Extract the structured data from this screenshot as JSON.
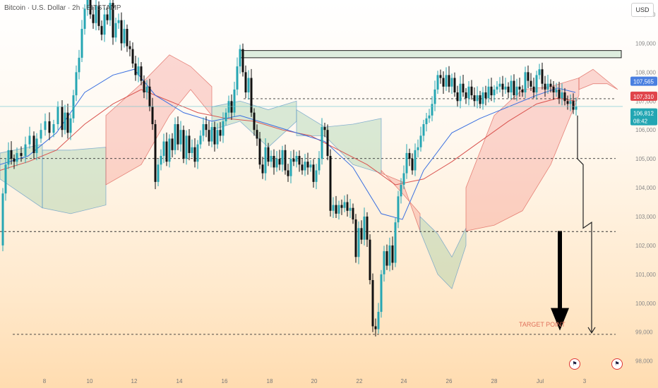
{
  "header": {
    "title": "Bitcoin · U.S. Dollar · 2h · BITSTAMP",
    "currency_button": "USD"
  },
  "annotations": {
    "target_label": "TARGET POINT"
  },
  "price_tags": [
    {
      "label": "107,565",
      "color": "#4a7fe0"
    },
    {
      "label": "107,310",
      "color": "#e0454b"
    },
    {
      "label": "106,812",
      "sublabel": "08:42",
      "color": "#22a6b3"
    }
  ],
  "event_icons": [
    "us-flag-icon",
    "us-flag-icon"
  ],
  "chart_data": {
    "type": "candlestick",
    "symbol": "BTCUSD",
    "interval": "2h",
    "exchange": "BITSTAMP",
    "y_ticks": [
      98000,
      99000,
      100000,
      101000,
      102000,
      103000,
      104000,
      105000,
      106000,
      107000,
      108000,
      109000,
      110000
    ],
    "y_tick_labels": [
      "98,000",
      "99,000",
      "100,000",
      "101,000",
      "102,000",
      "103,000",
      "104,000",
      "105,000",
      "106,000",
      "107,000",
      "108,000",
      "109,000",
      "110,000"
    ],
    "ylim": [
      97600,
      110500
    ],
    "x_tick_labels": [
      "8",
      "10",
      "12",
      "14",
      "16",
      "18",
      "20",
      "22",
      "24",
      "26",
      "28",
      "Jul",
      "3"
    ],
    "grid": false,
    "price_path": [
      [
        0,
        102000
      ],
      [
        4,
        103800
      ],
      [
        8,
        104800
      ],
      [
        12,
        105300
      ],
      [
        16,
        105000
      ],
      [
        20,
        104900
      ],
      [
        24,
        105200
      ],
      [
        30,
        105100
      ],
      [
        36,
        105500
      ],
      [
        42,
        105800
      ],
      [
        48,
        105200
      ],
      [
        52,
        105700
      ],
      [
        58,
        106000
      ],
      [
        64,
        106300
      ],
      [
        70,
        105900
      ],
      [
        76,
        106200
      ],
      [
        82,
        106800
      ],
      [
        88,
        106000
      ],
      [
        92,
        106600
      ],
      [
        96,
        105900
      ],
      [
        100,
        106400
      ],
      [
        104,
        107200
      ],
      [
        108,
        108000
      ],
      [
        112,
        108500
      ],
      [
        116,
        109500
      ],
      [
        120,
        110200
      ],
      [
        124,
        110700
      ],
      [
        128,
        110000
      ],
      [
        132,
        109700
      ],
      [
        136,
        110300
      ],
      [
        140,
        109600
      ],
      [
        144,
        109300
      ],
      [
        148,
        110000
      ],
      [
        152,
        109800
      ],
      [
        156,
        110400
      ],
      [
        160,
        109200
      ],
      [
        164,
        109700
      ],
      [
        168,
        109800
      ],
      [
        172,
        109000
      ],
      [
        176,
        109500
      ],
      [
        180,
        108900
      ],
      [
        184,
        108800
      ],
      [
        188,
        108300
      ],
      [
        192,
        107900
      ],
      [
        196,
        108200
      ],
      [
        200,
        107700
      ],
      [
        204,
        107300
      ],
      [
        208,
        107500
      ],
      [
        212,
        106800
      ],
      [
        216,
        106200
      ],
      [
        220,
        104200
      ],
      [
        224,
        104800
      ],
      [
        228,
        105100
      ],
      [
        232,
        105600
      ],
      [
        236,
        104900
      ],
      [
        240,
        105700
      ],
      [
        244,
        105300
      ],
      [
        248,
        106200
      ],
      [
        252,
        105500
      ],
      [
        256,
        106000
      ],
      [
        260,
        105000
      ],
      [
        264,
        105800
      ],
      [
        268,
        105200
      ],
      [
        272,
        105400
      ],
      [
        276,
        104900
      ],
      [
        280,
        105500
      ],
      [
        284,
        105800
      ],
      [
        288,
        106200
      ],
      [
        292,
        106000
      ],
      [
        296,
        105600
      ],
      [
        300,
        106100
      ],
      [
        304,
        105500
      ],
      [
        308,
        106000
      ],
      [
        312,
        105800
      ],
      [
        316,
        106300
      ],
      [
        320,
        106600
      ],
      [
        324,
        107000
      ],
      [
        328,
        106600
      ],
      [
        332,
        107400
      ],
      [
        336,
        108200
      ],
      [
        340,
        108800
      ],
      [
        344,
        108000
      ],
      [
        348,
        107300
      ],
      [
        352,
        107800
      ],
      [
        356,
        106600
      ],
      [
        360,
        106000
      ],
      [
        364,
        105700
      ],
      [
        368,
        104800
      ],
      [
        372,
        104500
      ],
      [
        376,
        105400
      ],
      [
        380,
        104900
      ],
      [
        384,
        105100
      ],
      [
        388,
        104700
      ],
      [
        392,
        105000
      ],
      [
        396,
        104800
      ],
      [
        400,
        105300
      ],
      [
        404,
        104600
      ],
      [
        408,
        104400
      ],
      [
        412,
        105000
      ],
      [
        416,
        104900
      ],
      [
        420,
        105100
      ],
      [
        424,
        104800
      ],
      [
        428,
        104600
      ],
      [
        432,
        104900
      ],
      [
        436,
        104700
      ],
      [
        440,
        104800
      ],
      [
        444,
        104200
      ],
      [
        448,
        104600
      ],
      [
        452,
        105000
      ],
      [
        456,
        106100
      ],
      [
        460,
        106000
      ],
      [
        464,
        105100
      ],
      [
        468,
        103200
      ],
      [
        472,
        103400
      ],
      [
        476,
        103100
      ],
      [
        480,
        103400
      ],
      [
        484,
        103300
      ],
      [
        488,
        103500
      ],
      [
        492,
        103200
      ],
      [
        496,
        103300
      ],
      [
        500,
        102900
      ],
      [
        504,
        101600
      ],
      [
        508,
        102600
      ],
      [
        512,
        102200
      ],
      [
        516,
        103000
      ],
      [
        520,
        102200
      ],
      [
        524,
        100800
      ],
      [
        528,
        99200
      ],
      [
        532,
        99100
      ],
      [
        536,
        99700
      ],
      [
        540,
        101000
      ],
      [
        544,
        101800
      ],
      [
        548,
        101300
      ],
      [
        552,
        102000
      ],
      [
        556,
        101400
      ],
      [
        560,
        102800
      ],
      [
        564,
        103700
      ],
      [
        568,
        104100
      ],
      [
        572,
        104500
      ],
      [
        576,
        105200
      ],
      [
        580,
        105000
      ],
      [
        584,
        104600
      ],
      [
        588,
        105300
      ],
      [
        592,
        105400
      ],
      [
        596,
        105800
      ],
      [
        600,
        106200
      ],
      [
        604,
        106400
      ],
      [
        608,
        106500
      ],
      [
        612,
        106900
      ],
      [
        616,
        107400
      ],
      [
        620,
        107900
      ],
      [
        624,
        107800
      ],
      [
        628,
        107500
      ],
      [
        632,
        107900
      ],
      [
        636,
        107500
      ],
      [
        640,
        107800
      ],
      [
        644,
        107300
      ],
      [
        648,
        107000
      ],
      [
        652,
        107600
      ],
      [
        656,
        107300
      ],
      [
        660,
        107100
      ],
      [
        664,
        107500
      ],
      [
        668,
        107200
      ],
      [
        672,
        107000
      ],
      [
        676,
        107200
      ],
      [
        680,
        106900
      ],
      [
        684,
        107300
      ],
      [
        688,
        107100
      ],
      [
        692,
        107500
      ],
      [
        696,
        107200
      ],
      [
        700,
        107400
      ],
      [
        704,
        107500
      ],
      [
        708,
        107600
      ],
      [
        712,
        107400
      ],
      [
        716,
        107500
      ],
      [
        720,
        107300
      ],
      [
        724,
        107700
      ],
      [
        728,
        107200
      ],
      [
        732,
        107500
      ],
      [
        736,
        107400
      ],
      [
        740,
        107300
      ],
      [
        744,
        108000
      ],
      [
        748,
        107700
      ],
      [
        752,
        107500
      ],
      [
        756,
        107300
      ],
      [
        760,
        107900
      ],
      [
        764,
        108100
      ],
      [
        768,
        107600
      ],
      [
        772,
        107400
      ],
      [
        776,
        107600
      ],
      [
        780,
        107500
      ],
      [
        784,
        107300
      ],
      [
        788,
        107400
      ],
      [
        792,
        107100
      ],
      [
        796,
        107300
      ],
      [
        800,
        107000
      ],
      [
        804,
        106900
      ],
      [
        808,
        107000
      ],
      [
        812,
        106700
      ],
      [
        816,
        106812
      ]
    ],
    "ma_blue": [
      [
        0,
        104800
      ],
      [
        40,
        105100
      ],
      [
        80,
        105900
      ],
      [
        120,
        107300
      ],
      [
        160,
        107900
      ],
      [
        190,
        108100
      ],
      [
        220,
        107200
      ],
      [
        260,
        106600
      ],
      [
        300,
        106300
      ],
      [
        340,
        106500
      ],
      [
        380,
        106200
      ],
      [
        420,
        105900
      ],
      [
        460,
        105600
      ],
      [
        500,
        104700
      ],
      [
        540,
        103100
      ],
      [
        570,
        102900
      ],
      [
        600,
        104600
      ],
      [
        640,
        105900
      ],
      [
        680,
        106400
      ],
      [
        720,
        106800
      ],
      [
        760,
        107200
      ],
      [
        790,
        107450
      ],
      [
        815,
        107300
      ]
    ],
    "ma_red": [
      [
        0,
        104600
      ],
      [
        40,
        104900
      ],
      [
        80,
        105300
      ],
      [
        120,
        106200
      ],
      [
        160,
        106900
      ],
      [
        200,
        107400
      ],
      [
        240,
        107000
      ],
      [
        280,
        106600
      ],
      [
        320,
        106400
      ],
      [
        360,
        106300
      ],
      [
        400,
        106000
      ],
      [
        440,
        105800
      ],
      [
        480,
        105300
      ],
      [
        520,
        104800
      ],
      [
        560,
        104100
      ],
      [
        600,
        104300
      ],
      [
        640,
        104900
      ],
      [
        680,
        105600
      ],
      [
        720,
        106300
      ],
      [
        760,
        106900
      ],
      [
        790,
        107100
      ],
      [
        815,
        107000
      ]
    ],
    "ichimoku_cloud": [
      {
        "x_start": 0,
        "x_end": 60,
        "top": [
          [
            0,
            105200
          ],
          [
            60,
            105500
          ]
        ],
        "bottom": [
          [
            0,
            104300
          ],
          [
            60,
            103300
          ]
        ],
        "color": "green"
      },
      {
        "x_start": 60,
        "x_end": 150,
        "top": [
          [
            60,
            105300
          ],
          [
            100,
            105300
          ],
          [
            150,
            105400
          ]
        ],
        "bottom": [
          [
            60,
            103300
          ],
          [
            100,
            103100
          ],
          [
            150,
            103400
          ]
        ],
        "color": "green"
      },
      {
        "x_start": 150,
        "x_end": 300,
        "top": [
          [
            150,
            106500
          ],
          [
            200,
            107600
          ],
          [
            240,
            108600
          ],
          [
            270,
            108200
          ],
          [
            300,
            107500
          ]
        ],
        "bottom": [
          [
            150,
            104100
          ],
          [
            200,
            104800
          ],
          [
            240,
            106500
          ],
          [
            270,
            107400
          ],
          [
            300,
            106500
          ]
        ],
        "color": "red"
      },
      {
        "x_start": 300,
        "x_end": 420,
        "top": [
          [
            300,
            106800
          ],
          [
            340,
            107000
          ],
          [
            380,
            106700
          ],
          [
            420,
            107000
          ]
        ],
        "bottom": [
          [
            300,
            106000
          ],
          [
            340,
            106300
          ],
          [
            380,
            105400
          ],
          [
            420,
            106300
          ]
        ],
        "color": "green"
      },
      {
        "x_start": 420,
        "x_end": 540,
        "top": [
          [
            420,
            106700
          ],
          [
            460,
            106100
          ],
          [
            500,
            106200
          ],
          [
            540,
            106400
          ]
        ],
        "bottom": [
          [
            420,
            105800
          ],
          [
            460,
            105800
          ],
          [
            500,
            104800
          ],
          [
            540,
            104500
          ]
        ],
        "color": "green"
      },
      {
        "x_start": 540,
        "x_end": 595,
        "top": [
          [
            540,
            104600
          ],
          [
            570,
            103800
          ],
          [
            595,
            103100
          ]
        ],
        "bottom": [
          [
            540,
            104500
          ],
          [
            570,
            104200
          ],
          [
            595,
            102500
          ]
        ],
        "color": "red"
      },
      {
        "x_start": 595,
        "x_end": 660,
        "top": [
          [
            595,
            103000
          ],
          [
            620,
            102400
          ],
          [
            640,
            101600
          ],
          [
            660,
            102600
          ]
        ],
        "bottom": [
          [
            595,
            102500
          ],
          [
            620,
            101000
          ],
          [
            640,
            100500
          ],
          [
            660,
            102000
          ]
        ],
        "color": "green"
      },
      {
        "x_start": 660,
        "x_end": 820,
        "top": [
          [
            660,
            104000
          ],
          [
            700,
            106500
          ],
          [
            740,
            107400
          ],
          [
            780,
            107500
          ],
          [
            820,
            107800
          ]
        ],
        "bottom": [
          [
            660,
            102500
          ],
          [
            700,
            102700
          ],
          [
            740,
            103200
          ],
          [
            780,
            104800
          ],
          [
            820,
            107200
          ]
        ],
        "color": "red"
      },
      {
        "x_start": 820,
        "x_end": 875,
        "top": [
          [
            820,
            107800
          ],
          [
            840,
            108100
          ],
          [
            860,
            107700
          ],
          [
            875,
            107400
          ]
        ],
        "bottom": [
          [
            820,
            107400
          ],
          [
            840,
            107600
          ],
          [
            860,
            107600
          ],
          [
            875,
            107400
          ]
        ],
        "color": "red"
      }
    ],
    "resistance_zone": {
      "x_start": 340,
      "x_end": 880,
      "y_low": 108500,
      "y_high": 108750
    },
    "dashed_levels": [
      107080,
      105010,
      102480,
      98920
    ],
    "projection_path": [
      [
        818,
        106500
      ],
      [
        818,
        105000
      ],
      [
        826,
        104800
      ],
      [
        826,
        102600
      ],
      [
        838,
        102800
      ],
      [
        838,
        98970
      ]
    ],
    "arrow": {
      "x": 793,
      "y_from": 102500,
      "y_to": 99050
    },
    "current_price": 106812
  }
}
